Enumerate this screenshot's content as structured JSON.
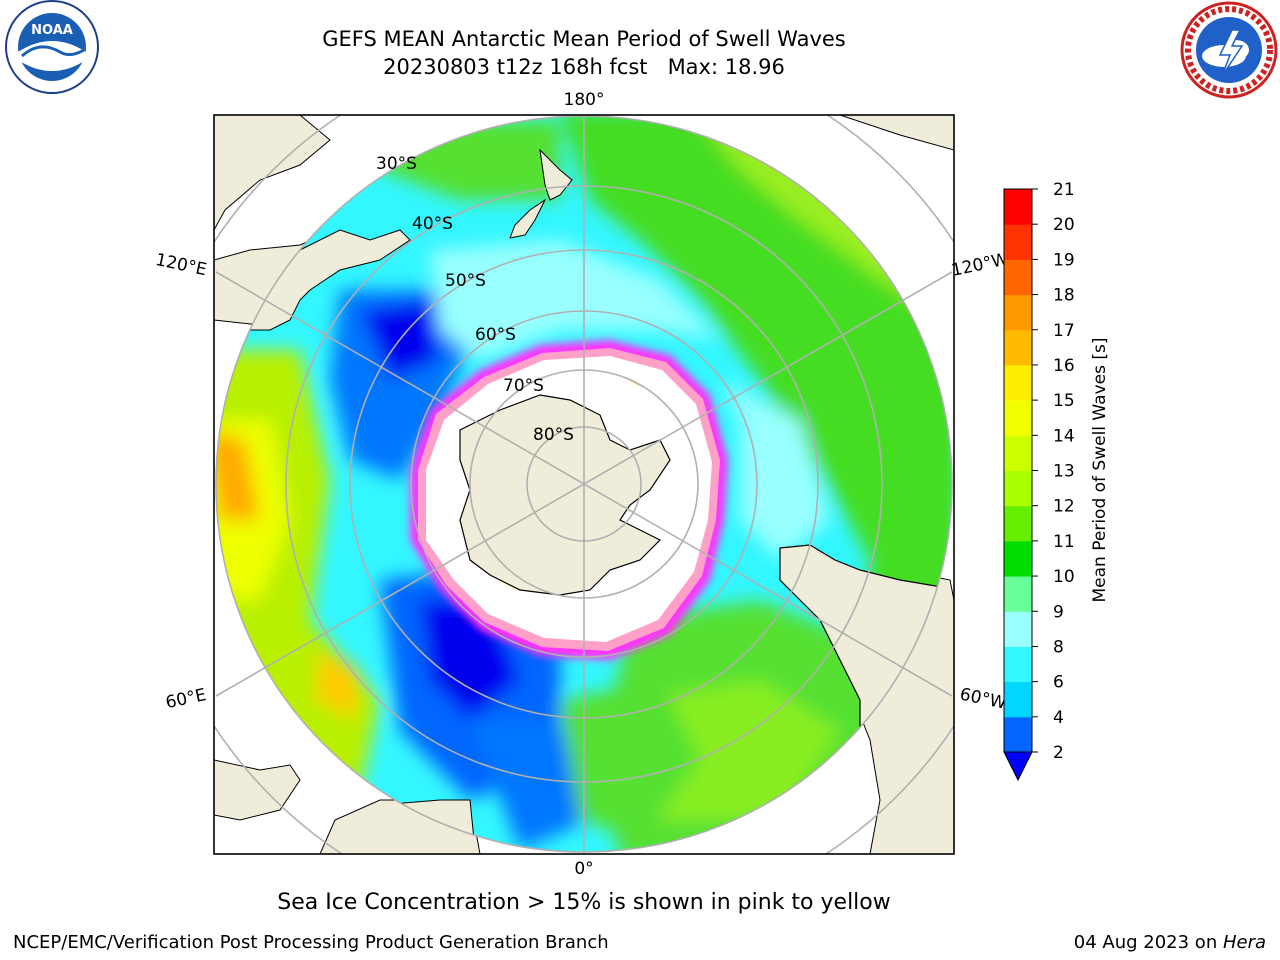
{
  "header": {
    "title_line1": "GEFS MEAN Antarctic Mean Period of Swell Waves",
    "title_line2": "20230803 t12z 168h fcst   Max: 18.96"
  },
  "logos": {
    "left": {
      "text": "NOAA",
      "icon": "noaa-logo-icon"
    },
    "right": {
      "icon": "nws-logo-icon"
    }
  },
  "map": {
    "projection": "south-polar-stereographic",
    "longitude_labels": [
      "180°",
      "120°E",
      "120°W",
      "60°E",
      "60°W",
      "0°"
    ],
    "latitude_labels": [
      "30°S",
      "40°S",
      "50°S",
      "60°S",
      "70°S",
      "80°S"
    ],
    "land_color": "#efedd9",
    "ice_colors": [
      "#ff33ff",
      "#ffa0a0",
      "#ffd040"
    ]
  },
  "colorbar": {
    "label": "Mean Period of Swell Waves [s]",
    "ticks": [
      "2",
      "4",
      "6",
      "8",
      "9",
      "10",
      "11",
      "12",
      "13",
      "14",
      "15",
      "16",
      "17",
      "18",
      "19",
      "20",
      "21"
    ],
    "colors": [
      "#0066ff",
      "#00d6ff",
      "#33f6ff",
      "#99ffff",
      "#66ff99",
      "#00dd00",
      "#66ee00",
      "#aaff00",
      "#ccff00",
      "#f2ff00",
      "#ffee00",
      "#ffbb00",
      "#ff9900",
      "#ff6600",
      "#ff3300",
      "#ff0000"
    ],
    "extend_color": "#0000ff"
  },
  "footer": {
    "note": "Sea Ice Concentration > 15% is shown in pink to yellow",
    "left": "NCEP/EMC/Verification Post Processing Product Generation Branch",
    "right_date": "04 Aug 2023 on ",
    "right_host": "Hera"
  }
}
